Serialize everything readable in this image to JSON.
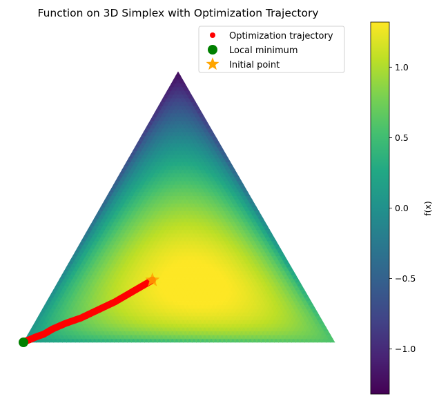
{
  "chart_data": {
    "type": "heatmap",
    "title": "Function on 3D Simplex with Optimization Trajectory",
    "plot_kind": "ternary simplex heatmap with trajectory overlay",
    "colormap": "viridis",
    "colorbar": {
      "label": "f(x)",
      "range": [
        -1.32,
        1.32
      ],
      "ticks": [
        1.0,
        0.5,
        0.0,
        -0.5,
        -1.0
      ],
      "tick_labels": [
        "1.0",
        "0.5",
        "0.0",
        "−0.5",
        "−1.0"
      ]
    },
    "legend": {
      "placement": "top-right",
      "entries": [
        {
          "label": "Optimization trajectory",
          "marker": "circle",
          "color": "#ff0000"
        },
        {
          "label": "Local minimum",
          "marker": "circle",
          "color": "#008000"
        },
        {
          "label": "Initial point",
          "marker": "star",
          "color": "#ffa500"
        }
      ]
    },
    "series": [
      {
        "name": "Optimization trajectory",
        "type": "scatter",
        "color": "#ff0000",
        "barycentric": [
          [
            0.47,
            0.3,
            0.23
          ],
          [
            0.55,
            0.26,
            0.19
          ],
          [
            0.63,
            0.22,
            0.15
          ],
          [
            0.7,
            0.18,
            0.12
          ],
          [
            0.77,
            0.14,
            0.09
          ],
          [
            0.83,
            0.1,
            0.07
          ],
          [
            0.88,
            0.07,
            0.05
          ],
          [
            0.92,
            0.05,
            0.03
          ],
          [
            0.95,
            0.03,
            0.02
          ],
          [
            0.975,
            0.015,
            0.01
          ],
          [
            0.99,
            0.005,
            0.005
          ]
        ]
      },
      {
        "name": "Local minimum",
        "type": "scatter",
        "color": "#008000",
        "barycentric": [
          [
            1.0,
            0.0,
            0.0
          ]
        ]
      },
      {
        "name": "Initial point",
        "type": "scatter",
        "color": "#ffa500",
        "barycentric": [
          [
            0.47,
            0.3,
            0.23
          ]
        ]
      }
    ],
    "heatmap_features": {
      "peak_value": 1.28,
      "peak_barycentric": [
        0.333,
        0.333,
        0.333
      ],
      "vertex_values": {
        "bottom_left": 0.05,
        "bottom_right": 0.55,
        "top": -1.25
      }
    }
  }
}
